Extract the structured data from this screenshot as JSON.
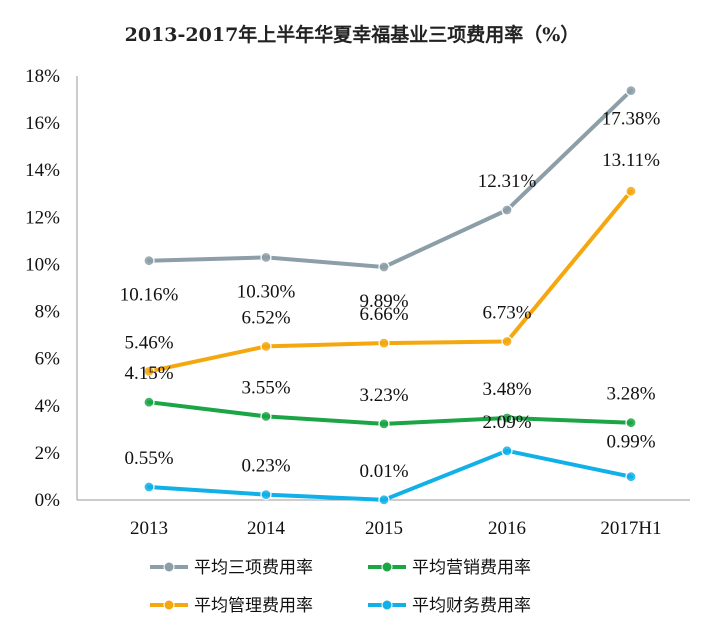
{
  "chart_data": {
    "type": "line",
    "title": "2013-2017年上半年华夏幸福基业三项费用率（%）",
    "categories": [
      "2013",
      "2014",
      "2015",
      "2016",
      "2017H1"
    ],
    "ylim": [
      0,
      18
    ],
    "yticks": [
      "0%",
      "2%",
      "4%",
      "6%",
      "8%",
      "10%",
      "12%",
      "14%",
      "16%",
      "18%"
    ],
    "grid": false,
    "legend_position": "bottom",
    "series": [
      {
        "name": "平均三项费用率",
        "color": "#8C9EA7",
        "values": [
          10.16,
          10.3,
          9.89,
          12.31,
          17.38
        ],
        "labels": [
          "10.16%",
          "10.30%",
          "9.89%",
          "12.31%",
          "17.38%"
        ]
      },
      {
        "name": "平均营销费用率",
        "color": "#1BA545",
        "values": [
          4.15,
          3.55,
          3.23,
          3.48,
          3.28
        ],
        "labels": [
          "4.15%",
          "3.55%",
          "3.23%",
          "3.48%",
          "3.28%"
        ]
      },
      {
        "name": "平均管理费用率",
        "color": "#F5A70F",
        "values": [
          5.46,
          6.52,
          6.66,
          6.73,
          13.11
        ],
        "labels": [
          "5.46%",
          "6.52%",
          "6.66%",
          "6.73%",
          "13.11%"
        ]
      },
      {
        "name": "平均财务费用率",
        "color": "#11B0E8",
        "values": [
          0.55,
          0.23,
          0.01,
          2.09,
          0.99
        ],
        "labels": [
          "0.55%",
          "0.23%",
          "0.01%",
          "2.09%",
          "0.99%"
        ]
      }
    ]
  }
}
